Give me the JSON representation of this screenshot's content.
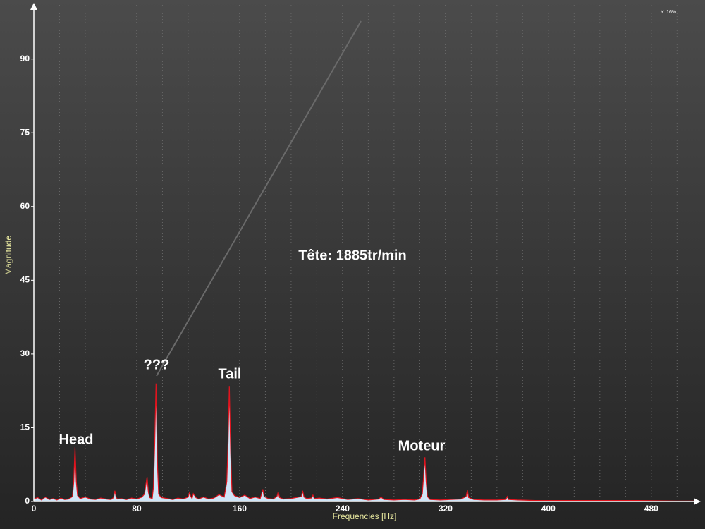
{
  "chart_data": {
    "type": "area",
    "xlabel": "Frequencies [Hz]",
    "ylabel": "Magnitude",
    "status": "Y: 16%",
    "xlim": [
      0,
      513
    ],
    "ylim": [
      0,
      101
    ],
    "xticks": [
      0,
      80,
      160,
      240,
      320,
      400,
      480
    ],
    "yticks": [
      0,
      15,
      30,
      45,
      60,
      75,
      90
    ],
    "grid": true,
    "x": [
      0,
      3,
      6,
      9,
      12,
      15,
      18,
      21,
      24,
      27,
      30,
      31,
      32,
      33,
      34,
      36,
      40,
      44,
      48,
      52,
      56,
      60,
      62,
      63,
      64,
      65,
      68,
      72,
      76,
      80,
      84,
      86,
      88,
      89,
      90,
      92,
      93,
      94,
      95,
      96,
      97,
      99,
      104,
      108,
      112,
      116,
      120,
      121,
      122,
      123,
      124,
      126,
      128,
      132,
      136,
      140,
      144,
      148,
      150,
      151,
      152,
      153,
      154,
      156,
      160,
      164,
      168,
      172,
      176,
      177,
      178,
      179,
      182,
      186,
      189,
      190,
      191,
      194,
      200,
      204,
      208,
      209,
      210,
      212,
      216,
      217,
      218,
      222,
      228,
      236,
      244,
      252,
      260,
      268,
      270,
      272,
      280,
      288,
      296,
      300,
      302,
      303,
      304,
      305,
      306,
      308,
      316,
      324,
      332,
      336,
      337,
      338,
      342,
      350,
      360,
      367,
      368,
      369,
      376,
      390,
      410,
      440,
      470,
      500,
      513
    ],
    "series": [
      {
        "color": "#e0141e",
        "fill": "#cfe5f7",
        "values": [
          0.5,
          0.8,
          0.3,
          0.9,
          0.4,
          0.6,
          0.3,
          0.7,
          0.4,
          0.5,
          1.0,
          4,
          11,
          4,
          1.2,
          0.6,
          0.9,
          0.5,
          0.4,
          0.7,
          0.5,
          0.4,
          0.8,
          2.2,
          0.8,
          0.5,
          0.6,
          0.4,
          0.7,
          0.5,
          0.9,
          1.5,
          5,
          2,
          0.8,
          0.6,
          3,
          12,
          24,
          8,
          1.5,
          0.8,
          0.6,
          0.4,
          0.7,
          0.5,
          0.9,
          1.8,
          1,
          0.6,
          1.6,
          0.8,
          0.5,
          0.9,
          0.5,
          0.7,
          1.4,
          0.9,
          4,
          12,
          23.5,
          10,
          2,
          1.2,
          0.8,
          1.3,
          0.6,
          0.9,
          0.6,
          1.5,
          2.5,
          1,
          0.6,
          0.5,
          1,
          2,
          0.8,
          0.5,
          0.6,
          0.8,
          1,
          2.2,
          0.9,
          0.6,
          0.7,
          1.3,
          0.6,
          0.7,
          0.5,
          0.8,
          0.4,
          0.6,
          0.3,
          0.5,
          0.9,
          0.4,
          0.3,
          0.4,
          0.3,
          0.5,
          1.5,
          5,
          9,
          4,
          1,
          0.4,
          0.3,
          0.4,
          0.5,
          1,
          2.3,
          0.8,
          0.4,
          0.3,
          0.3,
          0.4,
          1,
          0.4,
          0.3,
          0.2,
          0.2,
          0.2,
          0.2,
          0.1,
          0.1
        ]
      }
    ],
    "annotations": [
      "Head",
      "???",
      "Tail",
      "Moteur",
      "Tête: 1885tr/min"
    ]
  }
}
